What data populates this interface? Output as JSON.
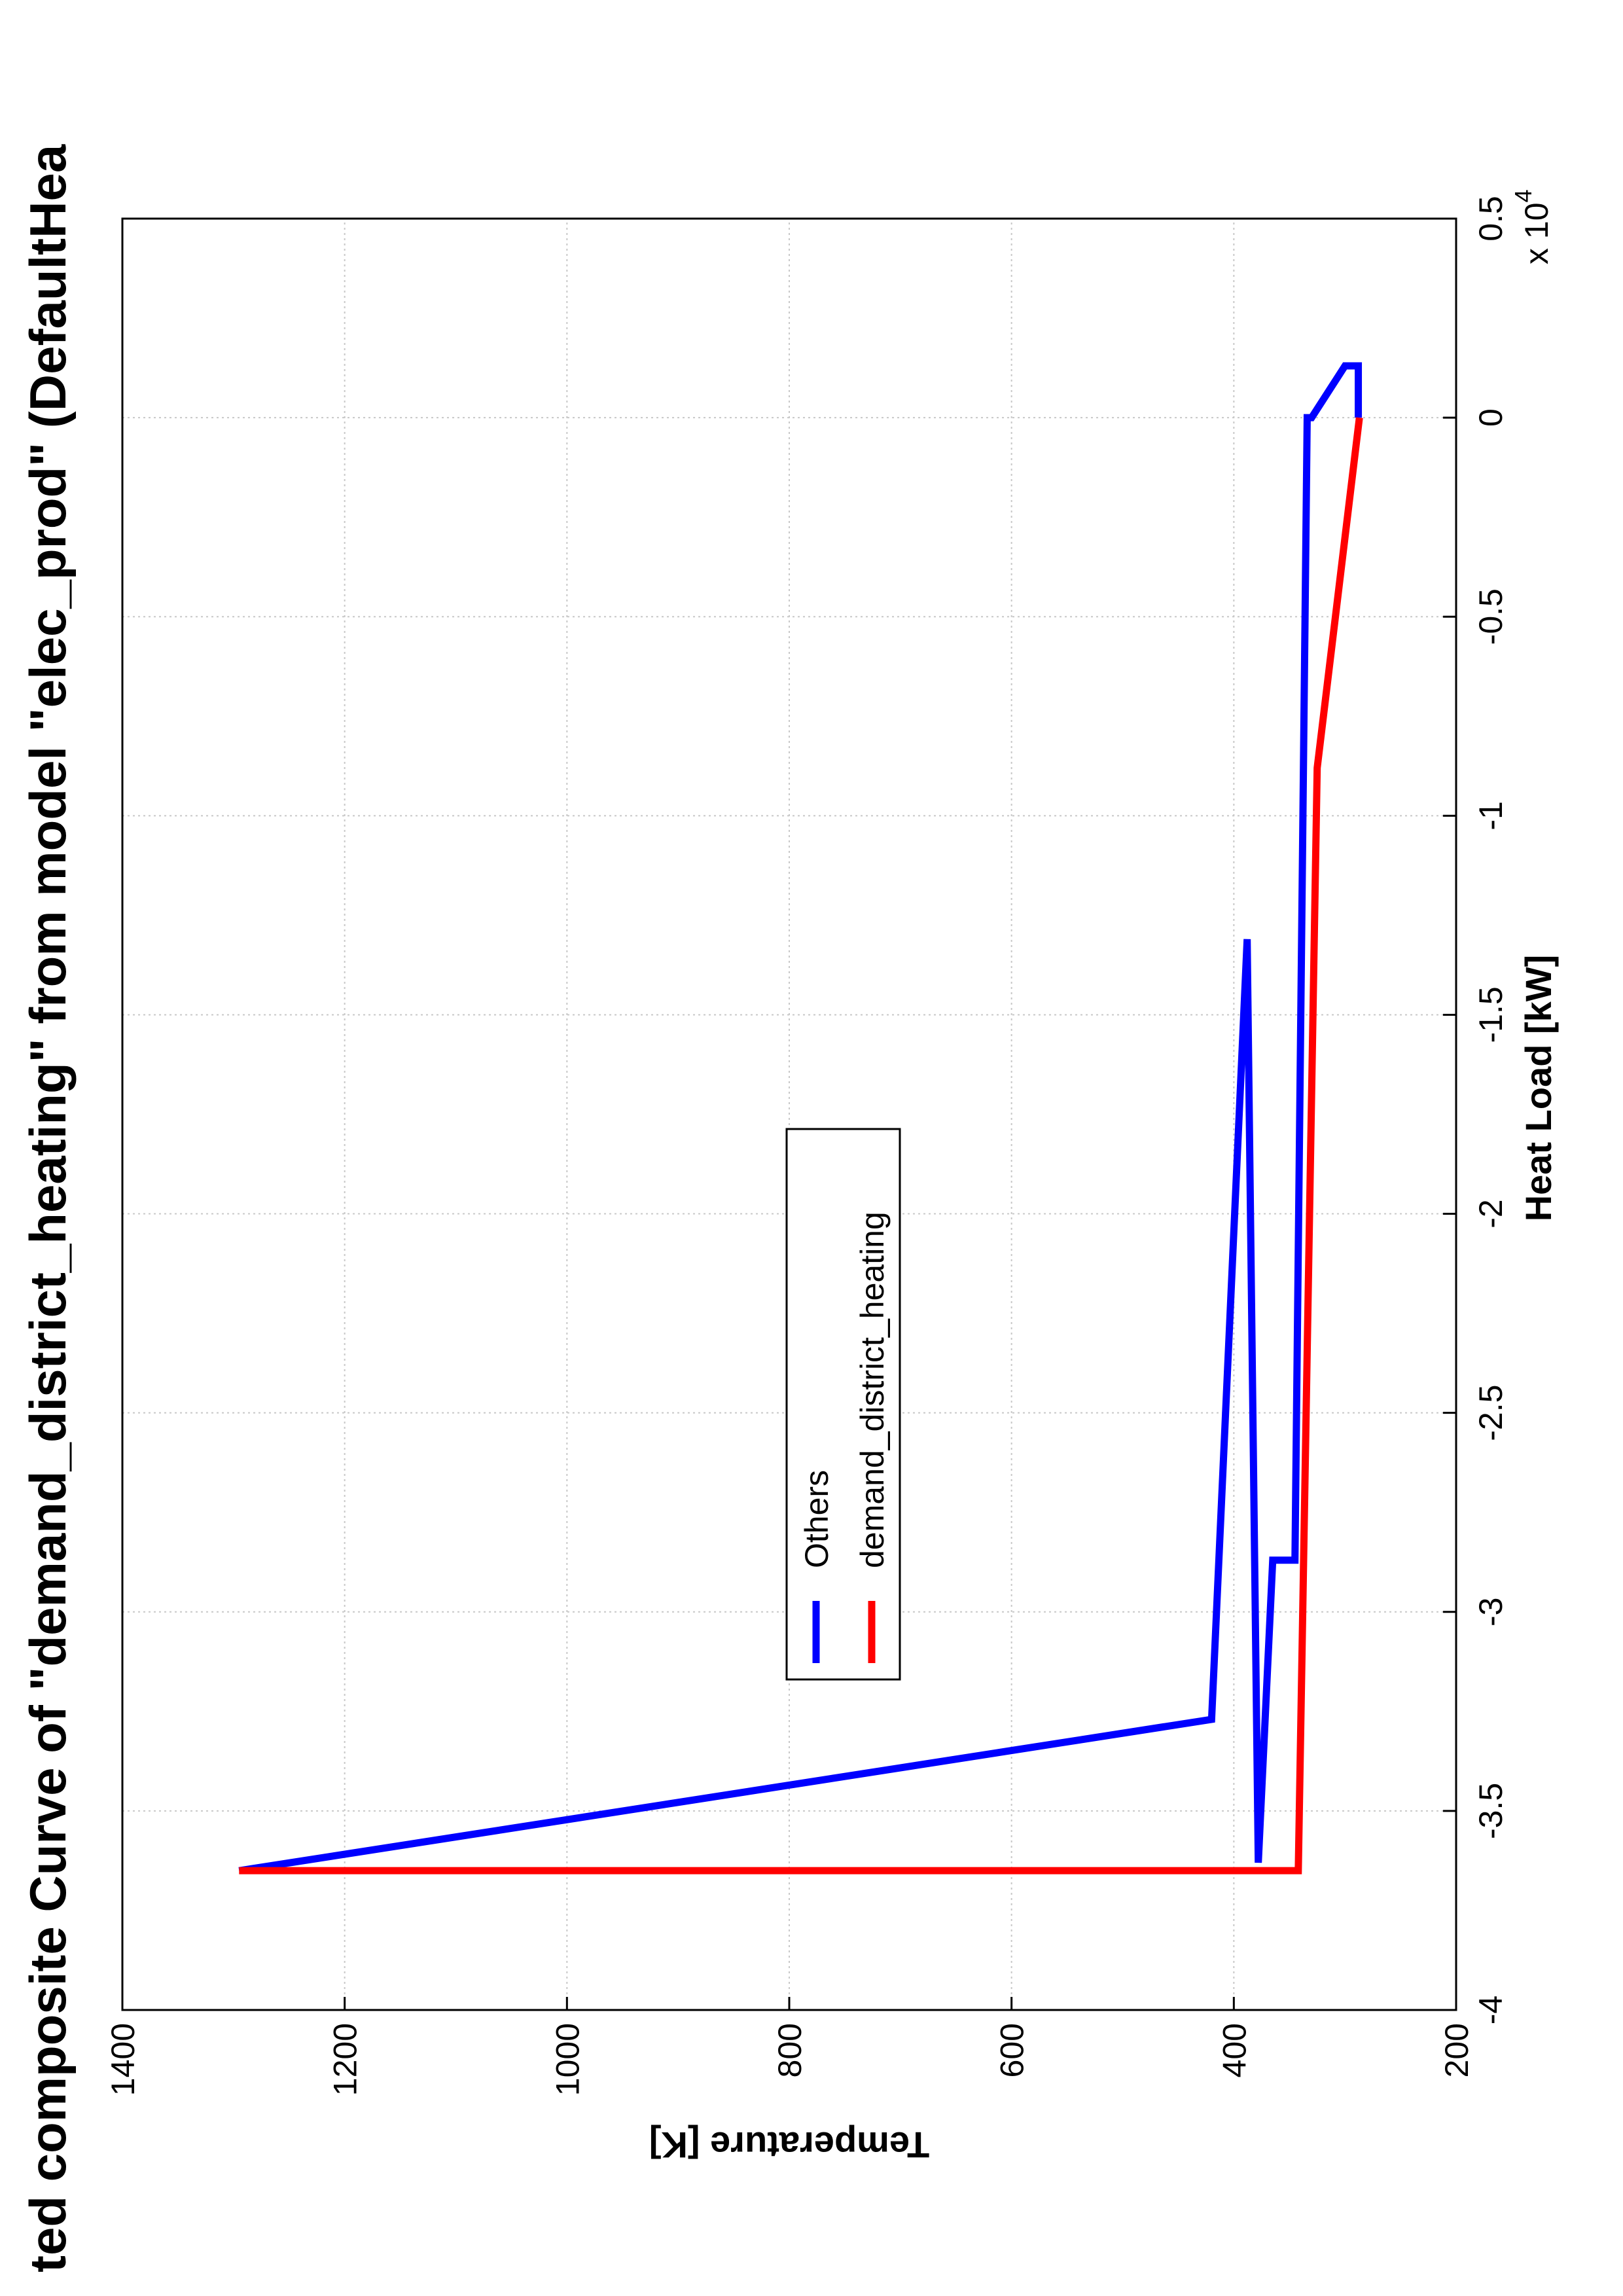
{
  "chart_data": {
    "type": "line",
    "title": "ted composite Curve of \"demand_district_heating\" from model \"elec_prod\" (DefaultHea",
    "x_label": "Heat Load [kW]",
    "y_label": "Temperature [K]",
    "x_multiplier": {
      "base": "x 10",
      "exponent": "4"
    },
    "xlim": [
      -4,
      0.5
    ],
    "xticks": [
      -4,
      -3.5,
      -3,
      -2.5,
      -2,
      -1.5,
      -1,
      -0.5,
      0,
      0.5
    ],
    "ylim": [
      200,
      1400
    ],
    "yticks": [
      200,
      400,
      600,
      800,
      1000,
      1200,
      1400
    ],
    "grid": true,
    "legend_position": "center",
    "series": [
      {
        "name": "Others",
        "color": "#0000ff",
        "x": [
          -3.65,
          -3.27,
          -1.31,
          -3.63,
          -2.87,
          -2.87,
          0,
          0,
          0.13,
          0.13,
          0
        ],
        "values": [
          1295,
          420,
          388,
          378,
          365,
          345,
          334,
          330,
          300,
          288,
          288
        ]
      },
      {
        "name": "demand_district_heating",
        "color": "#ff0000",
        "x": [
          -3.65,
          -3.65,
          -0.88,
          0
        ],
        "values": [
          1295,
          342,
          325,
          287
        ]
      }
    ]
  }
}
